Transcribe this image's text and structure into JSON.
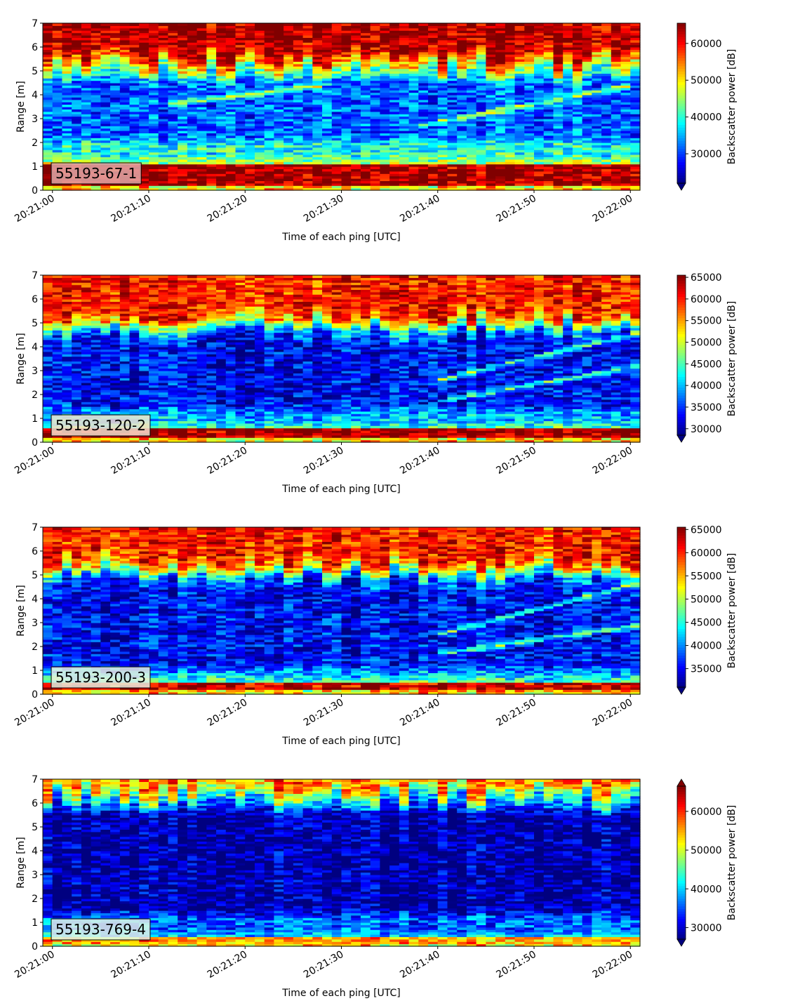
{
  "colors": {
    "colormap": "jet",
    "jet_stops": [
      "#00007f",
      "#0000ff",
      "#007fff",
      "#00ffff",
      "#7fff7f",
      "#ffff00",
      "#ff7f00",
      "#ff0000",
      "#7f0000"
    ]
  },
  "chart_data": [
    {
      "type": "heatmap",
      "panel_label": "55193-67-1",
      "panel_label_bg": "#e0a8a8",
      "xlabel": "Time of each ping [UTC]",
      "ylabel": "Range [m]",
      "xticks": [
        "20:21:00",
        "20:21:10",
        "20:21:20",
        "20:21:30",
        "20:21:40",
        "20:21:50",
        "20:22:00"
      ],
      "xlim_seconds": [
        -1,
        61
      ],
      "ylim": [
        0,
        7
      ],
      "yticks": [
        0,
        1,
        2,
        3,
        4,
        5,
        6,
        7
      ],
      "colorbar_label": "Backscatter power [dB]",
      "colorbar_ticks": [
        30000,
        40000,
        50000,
        60000
      ],
      "clim": [
        22000,
        65500
      ],
      "colorbar_extend": "min",
      "grid": false,
      "profile": {
        "bottom_band": [
          0.2,
          1.15,
          1.0
        ],
        "upper_red_from": 5.6,
        "blue_layer": [
          2.2,
          4.6
        ],
        "mid_level": 0.4
      },
      "tracks": [
        {
          "t0": 12,
          "r0": 3.6,
          "t1": 28,
          "r1": 4.4,
          "width": 0.18
        },
        {
          "t0": 38,
          "r0": 2.7,
          "t1": 60,
          "r1": 4.4,
          "width": 0.18
        }
      ]
    },
    {
      "type": "heatmap",
      "panel_label": "55193-120-2",
      "panel_label_bg": "#f0e0d0",
      "xlabel": "Time of each ping [UTC]",
      "ylabel": "Range [m]",
      "xticks": [
        "20:21:00",
        "20:21:10",
        "20:21:20",
        "20:21:30",
        "20:21:40",
        "20:21:50",
        "20:22:00"
      ],
      "xlim_seconds": [
        -1,
        61
      ],
      "ylim": [
        0,
        7
      ],
      "yticks": [
        0,
        1,
        2,
        3,
        4,
        5,
        6,
        7
      ],
      "colorbar_label": "Backscatter power [dB]",
      "colorbar_ticks": [
        30000,
        35000,
        40000,
        45000,
        50000,
        55000,
        60000,
        65000
      ],
      "clim": [
        28500,
        65500
      ],
      "colorbar_extend": "min",
      "grid": false,
      "profile": {
        "bottom_band": [
          0.2,
          0.6,
          1.0
        ],
        "upper_red_from": 5.2,
        "blue_layer": [
          1.5,
          4.8
        ],
        "mid_level": 0.3
      },
      "tracks": [
        {
          "t0": 40,
          "r0": 2.6,
          "t1": 61,
          "r1": 4.6,
          "width": 0.16
        },
        {
          "t0": 41,
          "r0": 1.8,
          "t1": 61,
          "r1": 3.2,
          "width": 0.16
        }
      ]
    },
    {
      "type": "heatmap",
      "panel_label": "55193-200-3",
      "panel_label_bg": "#e8f0e0",
      "xlabel": "Time of each ping [UTC]",
      "ylabel": "Range [m]",
      "xticks": [
        "20:21:00",
        "20:21:10",
        "20:21:20",
        "20:21:30",
        "20:21:40",
        "20:21:50",
        "20:22:00"
      ],
      "xlim_seconds": [
        -1,
        61
      ],
      "ylim": [
        0,
        7
      ],
      "yticks": [
        0,
        1,
        2,
        3,
        4,
        5,
        6,
        7
      ],
      "colorbar_label": "Backscatter power [dB]",
      "colorbar_ticks": [
        35000,
        40000,
        45000,
        50000,
        55000,
        60000,
        65000
      ],
      "clim": [
        31000,
        65500
      ],
      "colorbar_extend": "min",
      "grid": false,
      "profile": {
        "bottom_band": [
          0.2,
          0.5,
          0.95
        ],
        "upper_red_from": 5.5,
        "blue_layer": [
          1.2,
          5.0
        ],
        "mid_level": 0.3
      },
      "tracks": [
        {
          "t0": 40,
          "r0": 2.5,
          "t1": 61,
          "r1": 4.7,
          "width": 0.15
        },
        {
          "t0": 40,
          "r0": 1.7,
          "t1": 61,
          "r1": 2.9,
          "width": 0.15
        }
      ]
    },
    {
      "type": "heatmap",
      "panel_label": "55193-769-4",
      "panel_label_bg": "#e0f4e8",
      "xlabel": "Time of each ping [UTC]",
      "ylabel": "Range [m]",
      "xticks": [
        "20:21:00",
        "20:21:10",
        "20:21:20",
        "20:21:30",
        "20:21:40",
        "20:21:50",
        "20:22:00"
      ],
      "xlim_seconds": [
        -1,
        61
      ],
      "ylim": [
        0,
        7
      ],
      "yticks": [
        0,
        1,
        2,
        3,
        4,
        5,
        6,
        7
      ],
      "colorbar_label": "Backscatter power [dB]",
      "colorbar_ticks": [
        30000,
        40000,
        50000,
        60000
      ],
      "clim": [
        27000,
        66500
      ],
      "colorbar_extend": "both",
      "grid": false,
      "profile": {
        "bottom_band": [
          0.15,
          0.35,
          0.75
        ],
        "upper_red_from": 6.6,
        "blue_layer": [
          1.5,
          5.6
        ],
        "mid_level": 0.22
      },
      "tracks": []
    }
  ]
}
